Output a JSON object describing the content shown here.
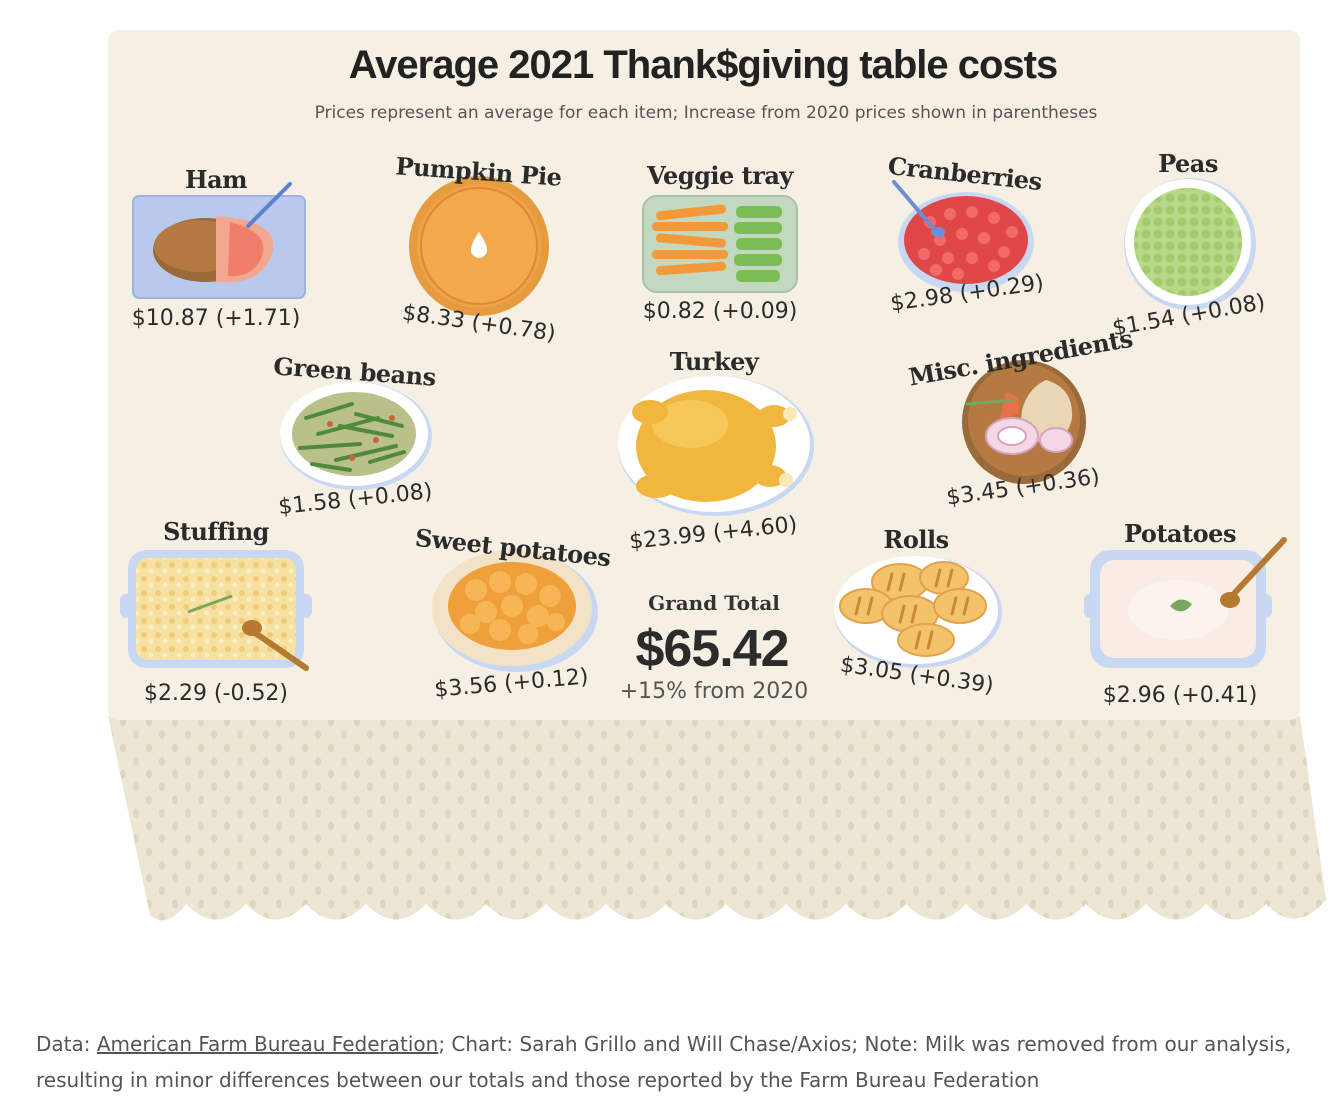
{
  "chart_data": {
    "type": "table",
    "title": "Average 2021 Thank$giving table costs",
    "subtitle": "Prices represent an average for each item; Increase from 2020 prices shown in parentheses",
    "items": [
      {
        "name": "Ham",
        "price_label": "$10.87 (+1.71)",
        "price": 10.87,
        "change": 1.71
      },
      {
        "name": "Pumpkin Pie",
        "price_label": "$8.33 (+0.78)",
        "price": 8.33,
        "change": 0.78
      },
      {
        "name": "Veggie tray",
        "price_label": "$0.82 (+0.09)",
        "price": 0.82,
        "change": 0.09
      },
      {
        "name": "Cranberries",
        "price_label": "$2.98 (+0.29)",
        "price": 2.98,
        "change": 0.29
      },
      {
        "name": "Peas",
        "price_label": "$1.54 (+0.08)",
        "price": 1.54,
        "change": 0.08
      },
      {
        "name": "Green beans",
        "price_label": "$1.58 (+0.08)",
        "price": 1.58,
        "change": 0.08
      },
      {
        "name": "Turkey",
        "price_label": "$23.99 (+4.60)",
        "price": 23.99,
        "change": 4.6
      },
      {
        "name": "Misc. ingredients",
        "price_label": "$3.45 (+0.36)",
        "price": 3.45,
        "change": 0.36
      },
      {
        "name": "Stuffing",
        "price_label": "$2.29 (-0.52)",
        "price": 2.29,
        "change": -0.52
      },
      {
        "name": "Sweet potatoes",
        "price_label": "$3.56 (+0.12)",
        "price": 3.56,
        "change": 0.12
      },
      {
        "name": "Rolls",
        "price_label": "$3.05 (+0.39)",
        "price": 3.05,
        "change": 0.39
      },
      {
        "name": "Potatoes",
        "price_label": "$2.96 (+0.41)",
        "price": 2.96,
        "change": 0.41
      }
    ],
    "grand_total": {
      "label": "Grand Total",
      "value": "$65.42",
      "change": "+15% from 2020"
    }
  },
  "footer": {
    "prefix": "Data: ",
    "source_link": "American Farm Bureau Federation",
    "rest": "; Chart: Sarah Grillo and Will Chase/Axios; Note: Milk was removed from our analysis, resulting in minor differences between our totals and those reported by the Farm Bureau Federation"
  },
  "colors": {
    "table_top": "#f6f0e4",
    "cloth": "#ede6d4",
    "cloth_dots": "#ddd4bf",
    "text": "#2b2b2b",
    "plate": "#ffffff",
    "plate_rim": "#c9d8f2"
  }
}
